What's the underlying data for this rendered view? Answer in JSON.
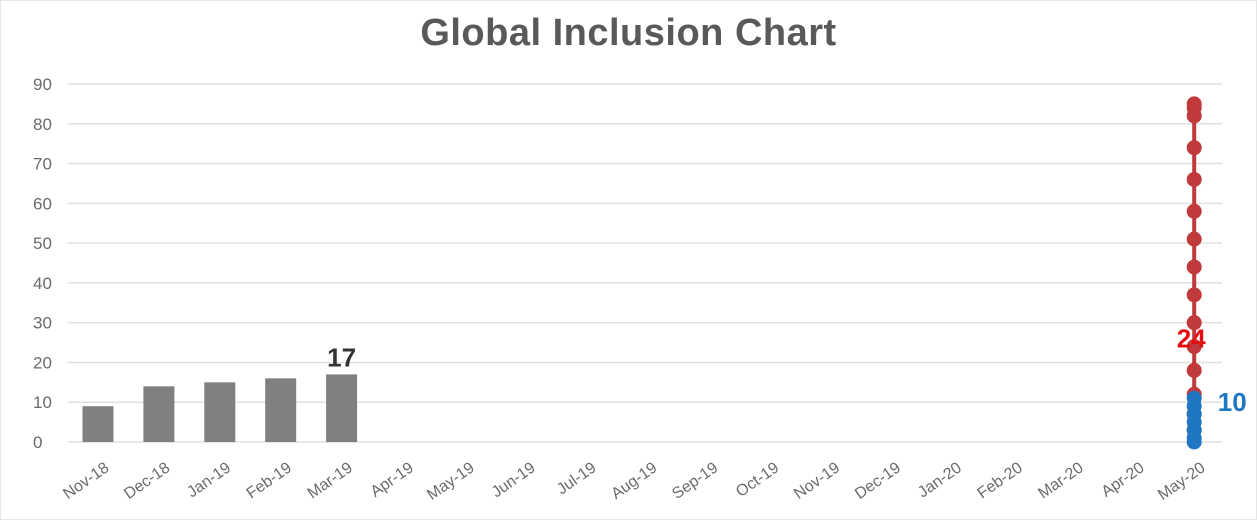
{
  "chart_data": {
    "type": "bar",
    "title": "Global Inclusion Chart",
    "xlabel": "",
    "ylabel": "",
    "ylim": [
      0,
      90
    ],
    "yticks": [
      "0",
      "10",
      "20",
      "30",
      "40",
      "50",
      "60",
      "70",
      "80",
      "90"
    ],
    "grid": true,
    "categories": [
      "Nov-18",
      "Dec-18",
      "Jan-19",
      "Feb-19",
      "Mar-19",
      "Apr-19",
      "May-19",
      "Jun-19",
      "Jul-19",
      "Aug-19",
      "Sep-19",
      "Oct-19",
      "Nov-19",
      "Dec-19",
      "Jan-20",
      "Feb-20",
      "Mar-20",
      "Apr-20",
      "May-20"
    ],
    "bars": {
      "color": "#808080",
      "values": [
        9,
        14,
        15,
        16,
        17,
        null,
        null,
        null,
        null,
        null,
        null,
        null,
        null,
        null,
        null,
        null,
        null,
        null,
        null
      ],
      "label_category": "Mar-19",
      "label": "17"
    },
    "dot_series": [
      {
        "color": "#c0393b",
        "category": "May-20",
        "values": [
          85,
          84,
          82,
          74,
          66,
          58,
          51,
          44,
          37,
          30,
          24,
          18,
          12,
          7,
          3
        ],
        "label": "24",
        "label_color": "#e01010"
      },
      {
        "color": "#1f77c4",
        "category": "May-20",
        "values": [
          11,
          9,
          7,
          5,
          3,
          1,
          0
        ],
        "label": "10",
        "label_color": "#1f77c4"
      }
    ]
  }
}
